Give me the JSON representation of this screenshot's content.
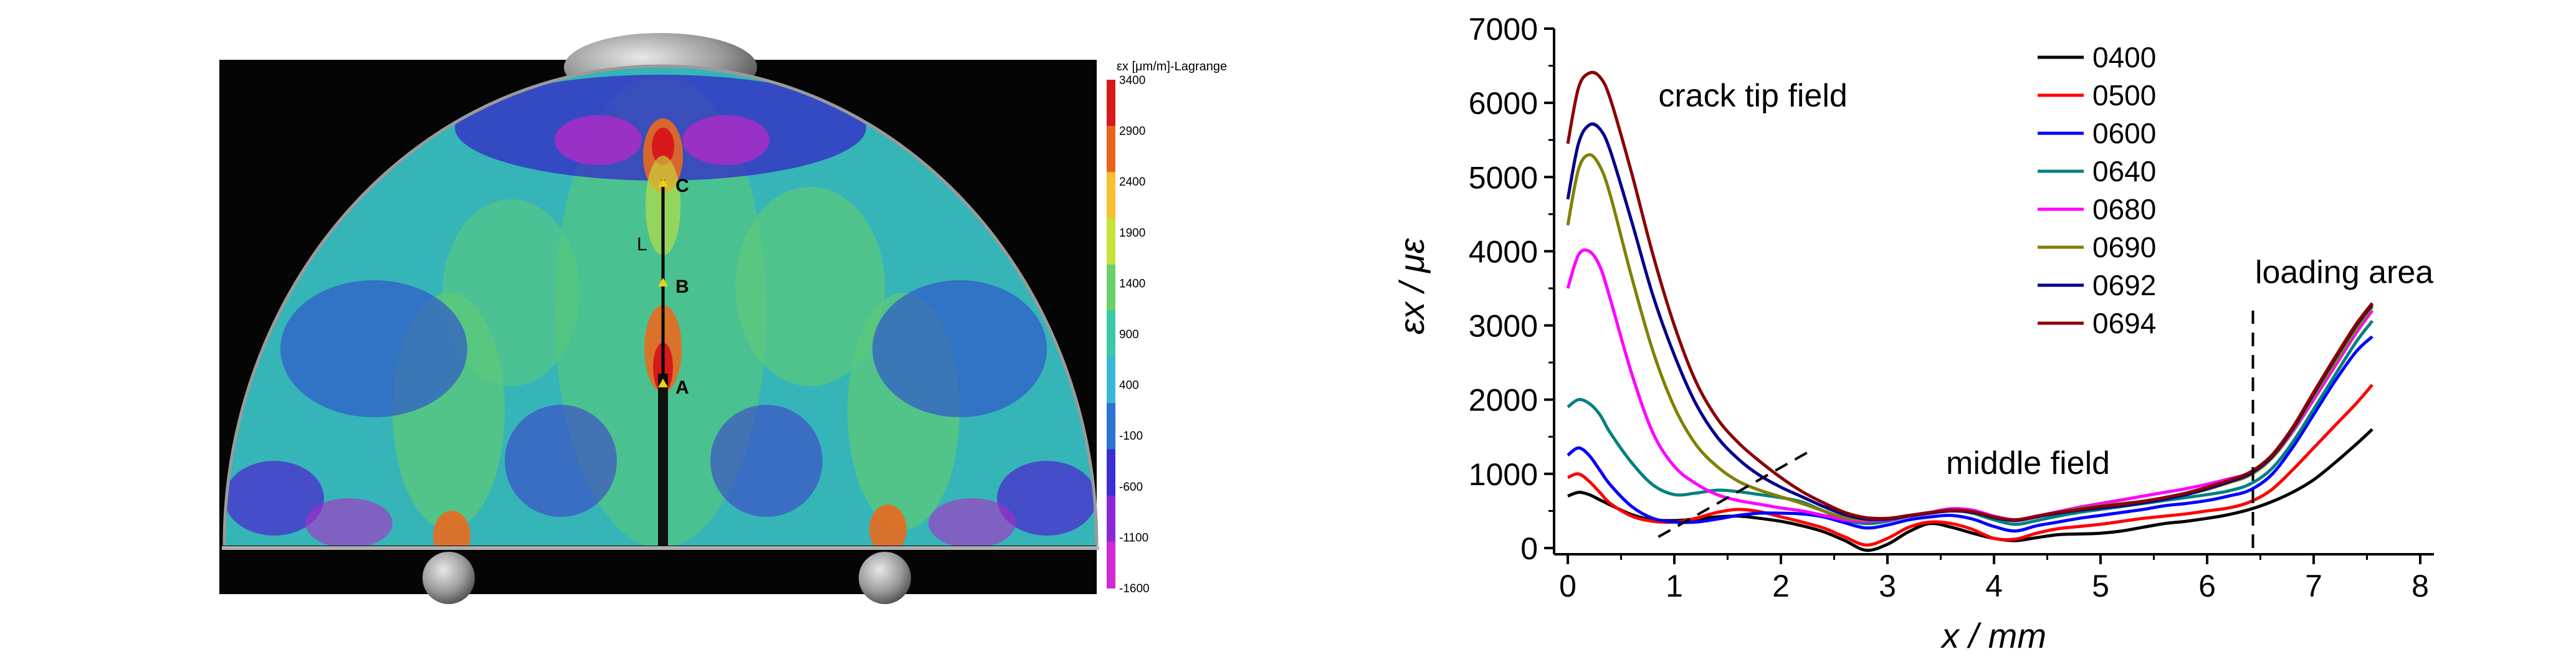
{
  "strain_map": {
    "colorbar_title": "εx [μm/m]-Lagrange",
    "colorbar_ticks": [
      "3400",
      "2900",
      "2400",
      "1900",
      "1400",
      "900",
      "400",
      "-100",
      "-600",
      "-1100",
      "-1600"
    ],
    "colorbar_colors": [
      "#d7191c",
      "#e8641d",
      "#f5c031",
      "#c6e33c",
      "#6cd06a",
      "#39c9a7",
      "#3bb7d6",
      "#2f73d2",
      "#3a2fd0",
      "#8a28d4",
      "#d02ad3"
    ],
    "point_labels": [
      "C",
      "L",
      "B",
      "A"
    ]
  },
  "chart_data": {
    "type": "line",
    "xlabel": "x / mm",
    "ylabel": "εx / με",
    "xlim": [
      0,
      8
    ],
    "ylim": [
      0,
      7000
    ],
    "x_ticks": [
      0,
      1,
      2,
      3,
      4,
      5,
      6,
      7,
      8
    ],
    "y_ticks": [
      0,
      1000,
      2000,
      3000,
      4000,
      5000,
      6000,
      7000
    ],
    "legend_position": "top-center",
    "annotations": [
      {
        "text": "crack tip field",
        "x": 0.85,
        "y": 5950
      },
      {
        "text": "middle field",
        "x": 3.55,
        "y": 1000
      },
      {
        "text": "loading area",
        "x": 6.45,
        "y": 3570
      }
    ],
    "dashed_lines": [
      {
        "x": [
          0.85,
          2.3
        ],
        "y": [
          150,
          1330
        ]
      },
      {
        "x": [
          6.43,
          6.43
        ],
        "y": [
          0,
          3200
        ]
      }
    ],
    "x": [
      0,
      0.1,
      0.2,
      0.3,
      0.4,
      0.6,
      0.8,
      1.0,
      1.2,
      1.4,
      1.6,
      1.8,
      2.0,
      2.2,
      2.4,
      2.6,
      2.8,
      3.0,
      3.2,
      3.4,
      3.6,
      3.8,
      4.0,
      4.2,
      4.4,
      4.6,
      4.8,
      5.0,
      5.2,
      5.4,
      5.6,
      5.8,
      6.0,
      6.2,
      6.4,
      6.6,
      6.8,
      7.0,
      7.2,
      7.4,
      7.55
    ],
    "series": [
      {
        "name": "0400",
        "color": "#000000",
        "values": [
          700,
          750,
          720,
          650,
          580,
          450,
          380,
          370,
          390,
          420,
          430,
          400,
          360,
          300,
          220,
          100,
          -30,
          50,
          220,
          330,
          280,
          200,
          130,
          100,
          140,
          180,
          190,
          200,
          230,
          280,
          330,
          360,
          400,
          450,
          520,
          620,
          750,
          920,
          1150,
          1400,
          1600
        ]
      },
      {
        "name": "0500",
        "color": "#ff0000",
        "values": [
          950,
          1000,
          900,
          750,
          600,
          430,
          360,
          350,
          400,
          480,
          520,
          490,
          420,
          350,
          270,
          150,
          40,
          130,
          280,
          350,
          330,
          250,
          130,
          120,
          200,
          260,
          290,
          320,
          360,
          400,
          430,
          460,
          500,
          540,
          620,
          780,
          1050,
          1350,
          1650,
          1950,
          2200
        ]
      },
      {
        "name": "0600",
        "color": "#0000ff",
        "values": [
          1250,
          1350,
          1250,
          1050,
          850,
          560,
          400,
          350,
          350,
          390,
          440,
          470,
          470,
          460,
          420,
          340,
          270,
          310,
          380,
          420,
          440,
          390,
          290,
          230,
          300,
          350,
          400,
          440,
          480,
          520,
          570,
          600,
          640,
          700,
          780,
          980,
          1350,
          1800,
          2250,
          2650,
          2850
        ]
      },
      {
        "name": "0640",
        "color": "#008080",
        "values": [
          1900,
          2000,
          1950,
          1800,
          1550,
          1150,
          850,
          720,
          740,
          780,
          760,
          720,
          680,
          620,
          500,
          380,
          330,
          360,
          430,
          470,
          510,
          470,
          380,
          320,
          370,
          430,
          480,
          520,
          560,
          600,
          640,
          680,
          720,
          770,
          860,
          1060,
          1420,
          1870,
          2330,
          2780,
          3060
        ]
      },
      {
        "name": "0680",
        "color": "#ff00ff",
        "values": [
          3500,
          3950,
          4000,
          3800,
          3350,
          2350,
          1550,
          1100,
          870,
          720,
          640,
          590,
          540,
          500,
          440,
          380,
          360,
          380,
          430,
          480,
          530,
          510,
          430,
          380,
          430,
          490,
          550,
          600,
          650,
          700,
          750,
          800,
          860,
          930,
          1010,
          1200,
          1560,
          2000,
          2450,
          2900,
          3200
        ]
      },
      {
        "name": "0690",
        "color": "#808000",
        "values": [
          4350,
          5100,
          5300,
          5150,
          4750,
          3650,
          2650,
          1900,
          1400,
          1100,
          900,
          780,
          690,
          600,
          500,
          410,
          380,
          390,
          430,
          470,
          500,
          480,
          410,
          370,
          420,
          480,
          530,
          570,
          600,
          630,
          670,
          720,
          790,
          880,
          980,
          1200,
          1580,
          2050,
          2500,
          2950,
          3250
        ]
      },
      {
        "name": "0692",
        "color": "#00008b",
        "values": [
          4700,
          5450,
          5700,
          5650,
          5350,
          4400,
          3400,
          2600,
          1950,
          1500,
          1200,
          980,
          820,
          690,
          560,
          450,
          390,
          390,
          430,
          470,
          500,
          480,
          410,
          370,
          420,
          470,
          510,
          540,
          570,
          610,
          660,
          720,
          800,
          890,
          1000,
          1220,
          1600,
          2080,
          2550,
          3000,
          3280
        ]
      },
      {
        "name": "0694",
        "color": "#8b0000",
        "values": [
          5450,
          6200,
          6400,
          6350,
          6050,
          5050,
          3950,
          3000,
          2250,
          1750,
          1420,
          1170,
          950,
          760,
          610,
          480,
          410,
          400,
          440,
          480,
          510,
          490,
          420,
          380,
          430,
          480,
          520,
          560,
          590,
          630,
          680,
          740,
          820,
          910,
          1020,
          1240,
          1620,
          2100,
          2570,
          3020,
          3300
        ]
      }
    ]
  }
}
